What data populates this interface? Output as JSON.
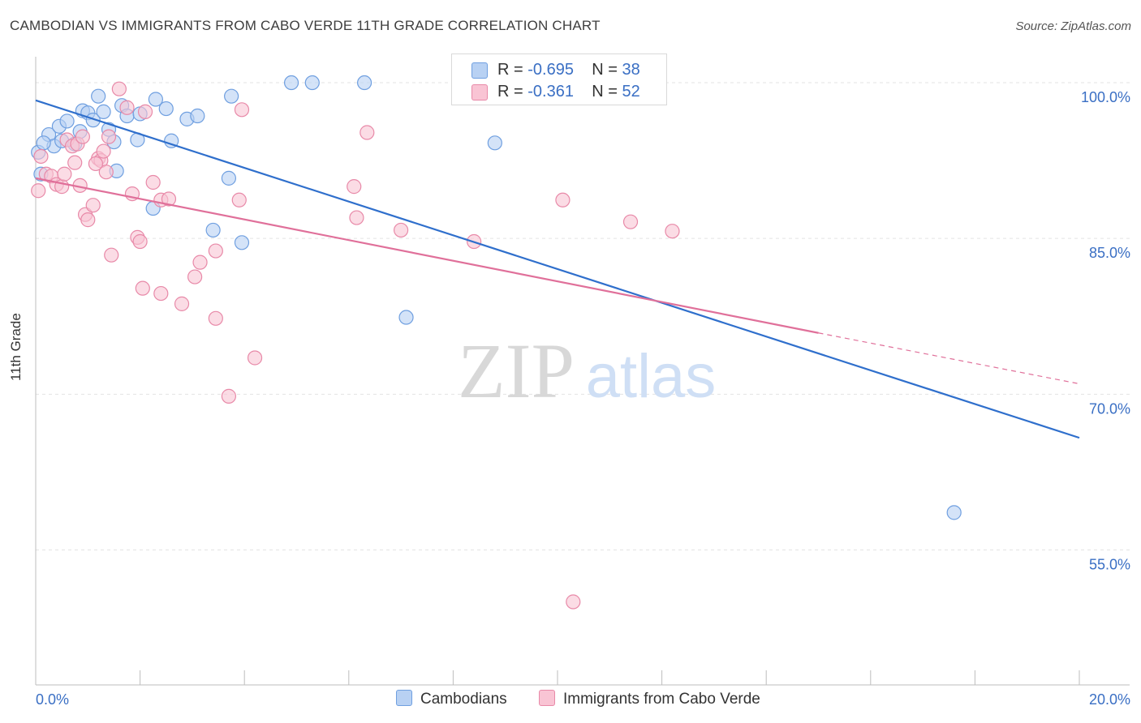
{
  "title": "CAMBODIAN VS IMMIGRANTS FROM CABO VERDE 11TH GRADE CORRELATION CHART",
  "source": "Source: ZipAtlas.com",
  "watermark": {
    "zip": "ZIP",
    "atlas": "atlas"
  },
  "legend": {
    "r_label": "R =",
    "n_label": "N =",
    "rows": [
      {
        "r": "-0.695",
        "n": "38",
        "color": "#b8d1f3",
        "border": "#6f9fe0"
      },
      {
        "r": "-0.361",
        "n": "52",
        "color": "#f9c4d4",
        "border": "#e889a8"
      }
    ]
  },
  "bottom_legend": [
    {
      "label": "Cambodians",
      "color": "#b8d1f3",
      "border": "#6f9fe0"
    },
    {
      "label": "Immigrants from Cabo Verde",
      "color": "#f9c4d4",
      "border": "#e889a8"
    }
  ],
  "chart_data": {
    "type": "scatter",
    "xlabel": "",
    "ylabel": "11th Grade",
    "xlim": [
      0,
      20
    ],
    "ylim": [
      42,
      102.5
    ],
    "x_tick_labels": [
      {
        "value": 0,
        "label": "0.0%"
      },
      {
        "value": 20,
        "label": "20.0%"
      }
    ],
    "y_tick_labels": [
      {
        "value": 100,
        "label": "100.0%"
      },
      {
        "value": 85,
        "label": "85.0%"
      },
      {
        "value": 70,
        "label": "70.0%"
      },
      {
        "value": 55,
        "label": "55.0%"
      }
    ],
    "grid": true,
    "legend_position": "top-center",
    "series": [
      {
        "name": "Cambodians",
        "color": "#6f9fe0",
        "fill": "#b8d1f3",
        "trend": {
          "x": [
            0,
            20
          ],
          "y": [
            98.3,
            65.8
          ],
          "color": "#2f6fcc"
        },
        "points": [
          [
            0.05,
            93.3
          ],
          [
            0.1,
            91.2
          ],
          [
            0.25,
            95.0
          ],
          [
            0.35,
            93.9
          ],
          [
            0.45,
            95.8
          ],
          [
            0.5,
            94.4
          ],
          [
            0.6,
            96.3
          ],
          [
            0.75,
            94.1
          ],
          [
            0.85,
            95.3
          ],
          [
            0.9,
            97.3
          ],
          [
            1.0,
            97.1
          ],
          [
            1.1,
            96.4
          ],
          [
            1.2,
            98.7
          ],
          [
            1.3,
            97.2
          ],
          [
            1.4,
            95.5
          ],
          [
            1.5,
            94.3
          ],
          [
            1.55,
            91.5
          ],
          [
            1.65,
            97.8
          ],
          [
            1.75,
            96.8
          ],
          [
            1.95,
            94.5
          ],
          [
            2.0,
            97.0
          ],
          [
            2.25,
            87.9
          ],
          [
            2.3,
            98.4
          ],
          [
            2.5,
            97.5
          ],
          [
            2.6,
            94.4
          ],
          [
            2.9,
            96.5
          ],
          [
            3.1,
            96.8
          ],
          [
            3.4,
            85.8
          ],
          [
            3.7,
            90.8
          ],
          [
            3.75,
            98.7
          ],
          [
            3.95,
            84.6
          ],
          [
            4.9,
            100.0
          ],
          [
            5.3,
            100.0
          ],
          [
            6.3,
            100.0
          ],
          [
            7.1,
            77.4
          ],
          [
            8.8,
            94.2
          ],
          [
            17.6,
            58.6
          ],
          [
            0.15,
            94.2
          ]
        ]
      },
      {
        "name": "Immigrants from Cabo Verde",
        "color": "#e889a8",
        "fill": "#f9c4d4",
        "trend": {
          "x": [
            0,
            15
          ],
          "y": [
            90.8,
            75.9
          ],
          "color": "#e0709a",
          "dashed_to": {
            "x": 20,
            "y": 71.0
          }
        },
        "points": [
          [
            0.05,
            89.6
          ],
          [
            0.1,
            92.9
          ],
          [
            0.2,
            91.2
          ],
          [
            0.3,
            91.0
          ],
          [
            0.4,
            90.2
          ],
          [
            0.5,
            90.0
          ],
          [
            0.6,
            94.5
          ],
          [
            0.7,
            93.9
          ],
          [
            0.75,
            92.3
          ],
          [
            0.8,
            94.1
          ],
          [
            0.85,
            90.1
          ],
          [
            0.9,
            94.8
          ],
          [
            0.95,
            87.3
          ],
          [
            1.0,
            86.8
          ],
          [
            1.1,
            88.2
          ],
          [
            1.2,
            92.7
          ],
          [
            1.25,
            92.5
          ],
          [
            1.3,
            93.4
          ],
          [
            1.35,
            91.4
          ],
          [
            1.4,
            94.8
          ],
          [
            1.45,
            83.4
          ],
          [
            1.6,
            99.4
          ],
          [
            1.75,
            97.6
          ],
          [
            1.85,
            89.3
          ],
          [
            1.95,
            85.1
          ],
          [
            2.0,
            84.7
          ],
          [
            2.05,
            80.2
          ],
          [
            2.1,
            97.2
          ],
          [
            2.25,
            90.4
          ],
          [
            2.4,
            88.7
          ],
          [
            2.55,
            88.8
          ],
          [
            2.8,
            78.7
          ],
          [
            3.05,
            81.3
          ],
          [
            3.15,
            82.7
          ],
          [
            3.45,
            83.8
          ],
          [
            3.45,
            77.3
          ],
          [
            3.7,
            69.8
          ],
          [
            3.9,
            88.7
          ],
          [
            3.95,
            97.4
          ],
          [
            4.2,
            73.5
          ],
          [
            6.1,
            90.0
          ],
          [
            6.15,
            87.0
          ],
          [
            6.35,
            95.2
          ],
          [
            7.0,
            85.8
          ],
          [
            8.4,
            84.7
          ],
          [
            10.1,
            88.7
          ],
          [
            10.3,
            50.0
          ],
          [
            11.4,
            86.6
          ],
          [
            12.2,
            85.7
          ],
          [
            0.55,
            91.2
          ],
          [
            2.4,
            79.7
          ],
          [
            1.15,
            92.2
          ]
        ]
      }
    ]
  }
}
